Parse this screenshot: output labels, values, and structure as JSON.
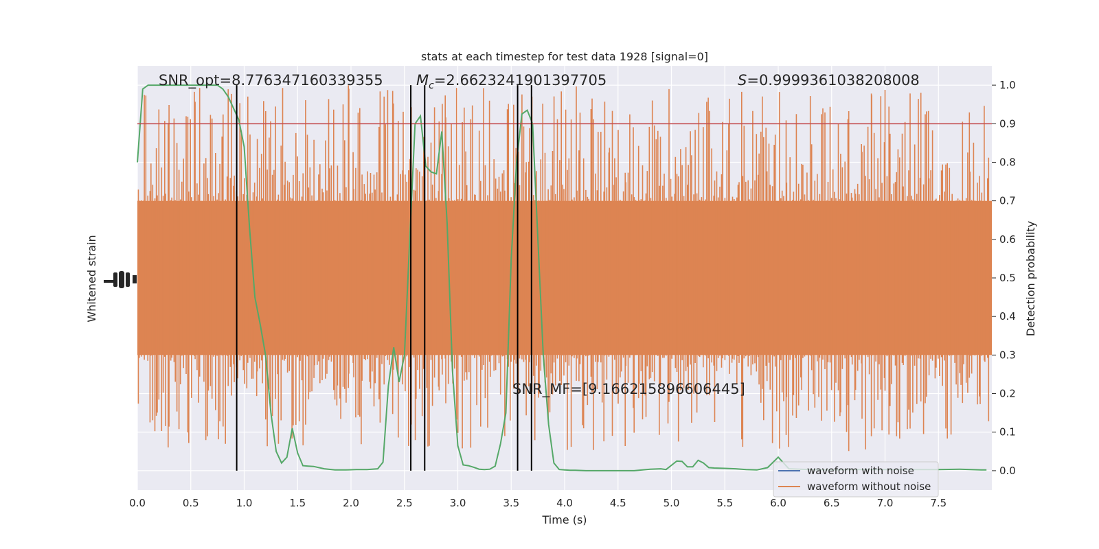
{
  "chart_data": {
    "type": "line",
    "title": "stats at each timestep for test data 1928 [signal=0]",
    "xlabel": "Time (s)",
    "ylabel_left": "Whitened strain",
    "ylabel_right": "Detection probability",
    "xlim": [
      0.0,
      8.0
    ],
    "ylim_right": [
      -0.05,
      1.05
    ],
    "x_ticks": [
      "0.0",
      "0.5",
      "1.0",
      "1.5",
      "2.0",
      "2.5",
      "3.0",
      "3.5",
      "4.0",
      "4.5",
      "5.0",
      "5.5",
      "6.0",
      "6.5",
      "7.0",
      "7.5"
    ],
    "y_ticks_right": [
      "0.0",
      "0.1",
      "0.2",
      "0.3",
      "0.4",
      "0.5",
      "0.6",
      "0.7",
      "0.8",
      "0.9",
      "1.0"
    ],
    "grid": true,
    "background": "#eaeaf2",
    "annotations": {
      "snr_opt": "SNR_opt=8.776347160339355",
      "mc_symbol": "M",
      "mc_sub": "c",
      "mc_value": "=2.6623241901397705",
      "s_symbol": "S",
      "s_value": "=0.9999361038208008",
      "snr_mf": "SNR_MF=[9.166215896606445]"
    },
    "threshold": {
      "value": 0.9,
      "color": "#c44e52"
    },
    "vertical_lines": [
      0.93,
      2.56,
      2.69,
      3.56,
      3.69
    ],
    "legend": {
      "position": "lower-right",
      "items": [
        {
          "label": "waveform with noise",
          "color": "#4c72b0"
        },
        {
          "label": "waveform without noise",
          "color": "#dd8452"
        }
      ]
    },
    "series": [
      {
        "name": "waveform without noise",
        "color": "#dd8452",
        "band_lo": 0.3,
        "band_hi": 0.7,
        "spike_range": [
          0.05,
          1.0
        ]
      },
      {
        "color": "#55a868",
        "x": [
          0.0,
          0.05,
          0.1,
          0.15,
          0.2,
          0.3,
          0.4,
          0.5,
          0.6,
          0.7,
          0.75,
          0.8,
          0.85,
          0.9,
          0.95,
          1.0,
          1.05,
          1.1,
          1.15,
          1.2,
          1.25,
          1.3,
          1.35,
          1.4,
          1.45,
          1.5,
          1.55,
          1.6,
          1.65,
          1.75,
          1.85,
          1.95,
          2.05,
          2.15,
          2.25,
          2.3,
          2.35,
          2.4,
          2.45,
          2.5,
          2.55,
          2.6,
          2.65,
          2.7,
          2.75,
          2.8,
          2.85,
          2.9,
          2.95,
          3.0,
          3.05,
          3.1,
          3.15,
          3.2,
          3.25,
          3.3,
          3.35,
          3.4,
          3.45,
          3.5,
          3.55,
          3.6,
          3.65,
          3.7,
          3.75,
          3.8,
          3.85,
          3.9,
          3.95,
          4.0,
          4.05,
          4.1,
          4.2,
          4.35,
          4.5,
          4.65,
          4.8,
          4.9,
          4.95,
          5.05,
          5.1,
          5.15,
          5.2,
          5.25,
          5.3,
          5.35,
          5.4,
          5.5,
          5.6,
          5.7,
          5.8,
          5.9,
          6.0,
          6.05,
          6.1,
          6.2,
          6.3,
          6.5,
          6.7,
          6.9,
          7.1,
          7.3,
          7.5,
          7.7,
          7.9,
          7.95
        ],
        "y": [
          0.8,
          0.99,
          1.0,
          1.0,
          1.0,
          1.0,
          1.0,
          1.0,
          1.0,
          1.0,
          1.0,
          0.99,
          0.97,
          0.94,
          0.91,
          0.84,
          0.63,
          0.45,
          0.38,
          0.3,
          0.15,
          0.05,
          0.02,
          0.035,
          0.11,
          0.046,
          0.013,
          0.012,
          0.011,
          0.005,
          0.002,
          0.002,
          0.003,
          0.003,
          0.005,
          0.022,
          0.22,
          0.32,
          0.23,
          0.3,
          0.6,
          0.9,
          0.92,
          0.79,
          0.775,
          0.77,
          0.88,
          0.64,
          0.26,
          0.065,
          0.015,
          0.013,
          0.009,
          0.004,
          0.003,
          0.004,
          0.012,
          0.07,
          0.15,
          0.55,
          0.8,
          0.925,
          0.935,
          0.9,
          0.6,
          0.3,
          0.12,
          0.02,
          0.003,
          0.002,
          0.001,
          0.001,
          0.0,
          0.0,
          0.0,
          0.0,
          0.004,
          0.005,
          0.003,
          0.025,
          0.024,
          0.01,
          0.01,
          0.027,
          0.02,
          0.008,
          0.007,
          0.006,
          0.005,
          0.003,
          0.002,
          0.008,
          0.035,
          0.02,
          0.005,
          0.004,
          0.003,
          0.002,
          0.003,
          0.003,
          0.003,
          0.003,
          0.003,
          0.004,
          0.002,
          0.002
        ]
      }
    ]
  }
}
